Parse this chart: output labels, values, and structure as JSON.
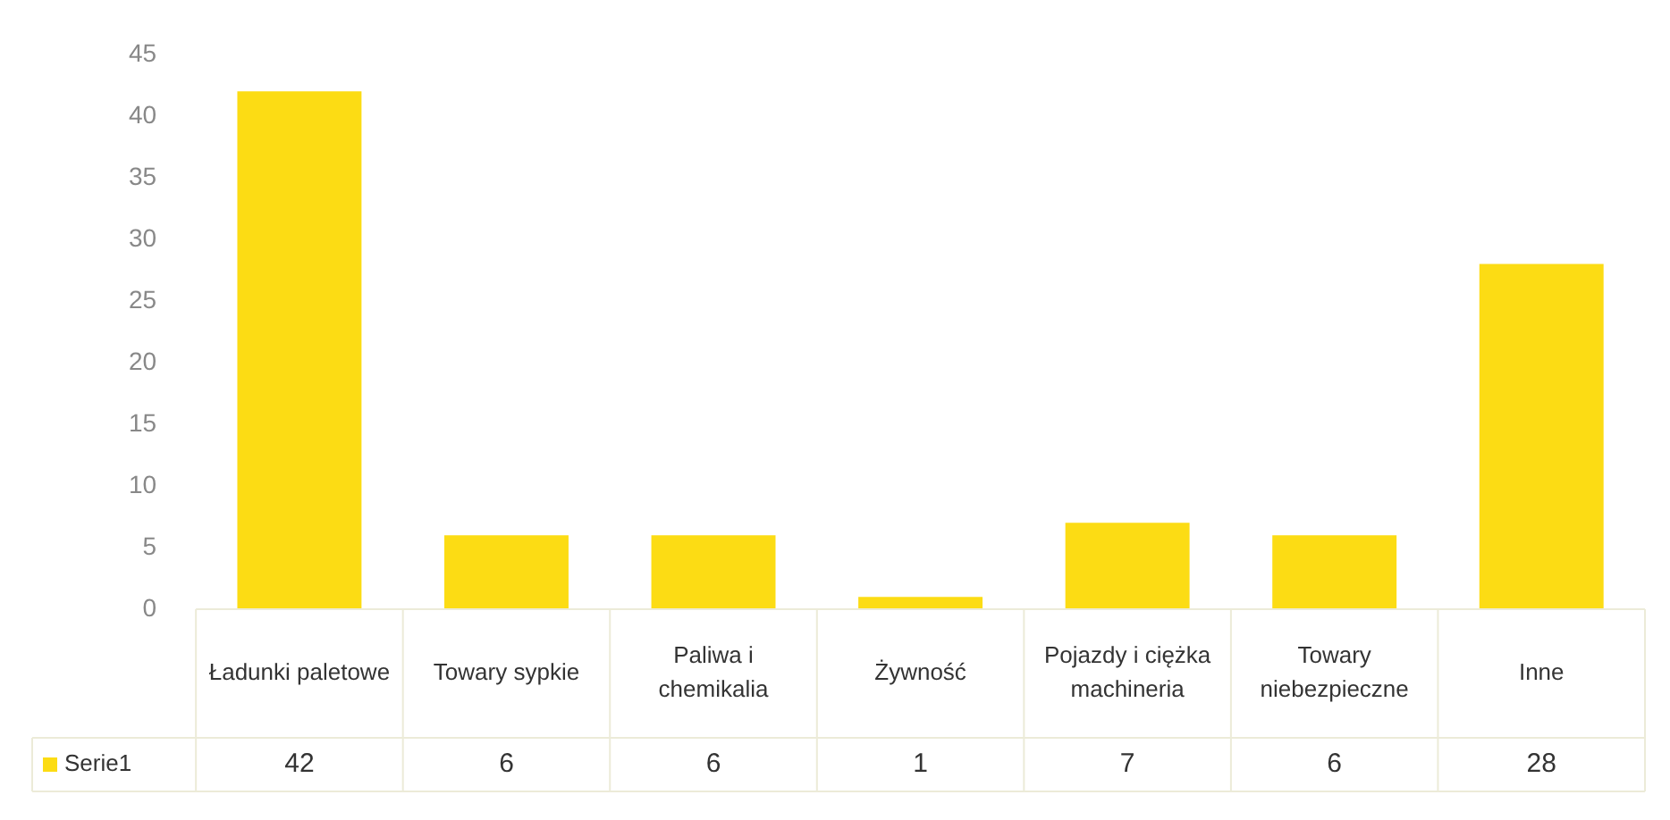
{
  "chart_data": {
    "type": "bar",
    "categories": [
      "Ładunki paletowe",
      "Towary sypkie",
      "Paliwa i chemikalia",
      "Żywność",
      "Pojazdy i ciężka machineria",
      "Towary niebezpieczne",
      "Inne"
    ],
    "series": [
      {
        "name": "Serie1",
        "color": "#fcdc14",
        "values": [
          42,
          6,
          6,
          1,
          7,
          6,
          28
        ]
      }
    ],
    "ylim": [
      0,
      45
    ],
    "yticks": [
      0,
      5,
      10,
      15,
      20,
      25,
      30,
      35,
      40,
      45
    ],
    "grid": false,
    "legend": "bottom",
    "data_labels": true
  }
}
